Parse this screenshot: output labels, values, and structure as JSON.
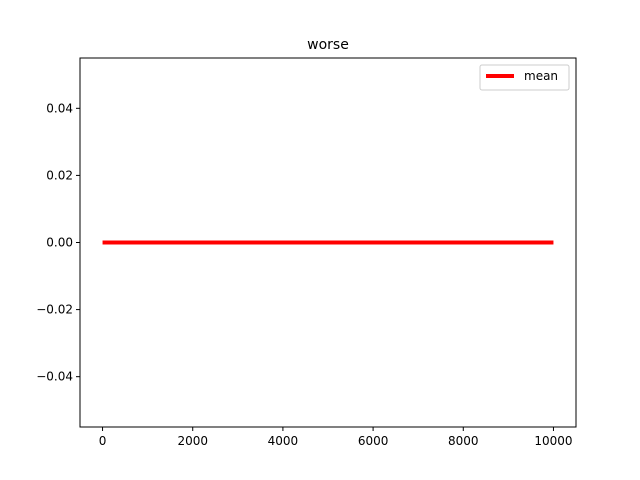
{
  "chart_data": {
    "type": "line",
    "title": "worse",
    "xlabel": "",
    "ylabel": "",
    "xlim": [
      -500,
      10500
    ],
    "ylim": [
      -0.055,
      0.055
    ],
    "xticks": [
      0,
      2000,
      4000,
      6000,
      8000,
      10000
    ],
    "xtick_labels": [
      "0",
      "2000",
      "4000",
      "6000",
      "8000",
      "10000"
    ],
    "yticks": [
      -0.04,
      -0.02,
      0.0,
      0.02,
      0.04
    ],
    "ytick_labels": [
      "−0.04",
      "−0.02",
      "0.00",
      "0.02",
      "0.04"
    ],
    "grid": false,
    "legend_position": "top-right",
    "series": [
      {
        "name": "mean",
        "color": "#ff0000",
        "x": [
          0,
          10000
        ],
        "y": [
          0.0,
          0.0
        ]
      }
    ]
  }
}
